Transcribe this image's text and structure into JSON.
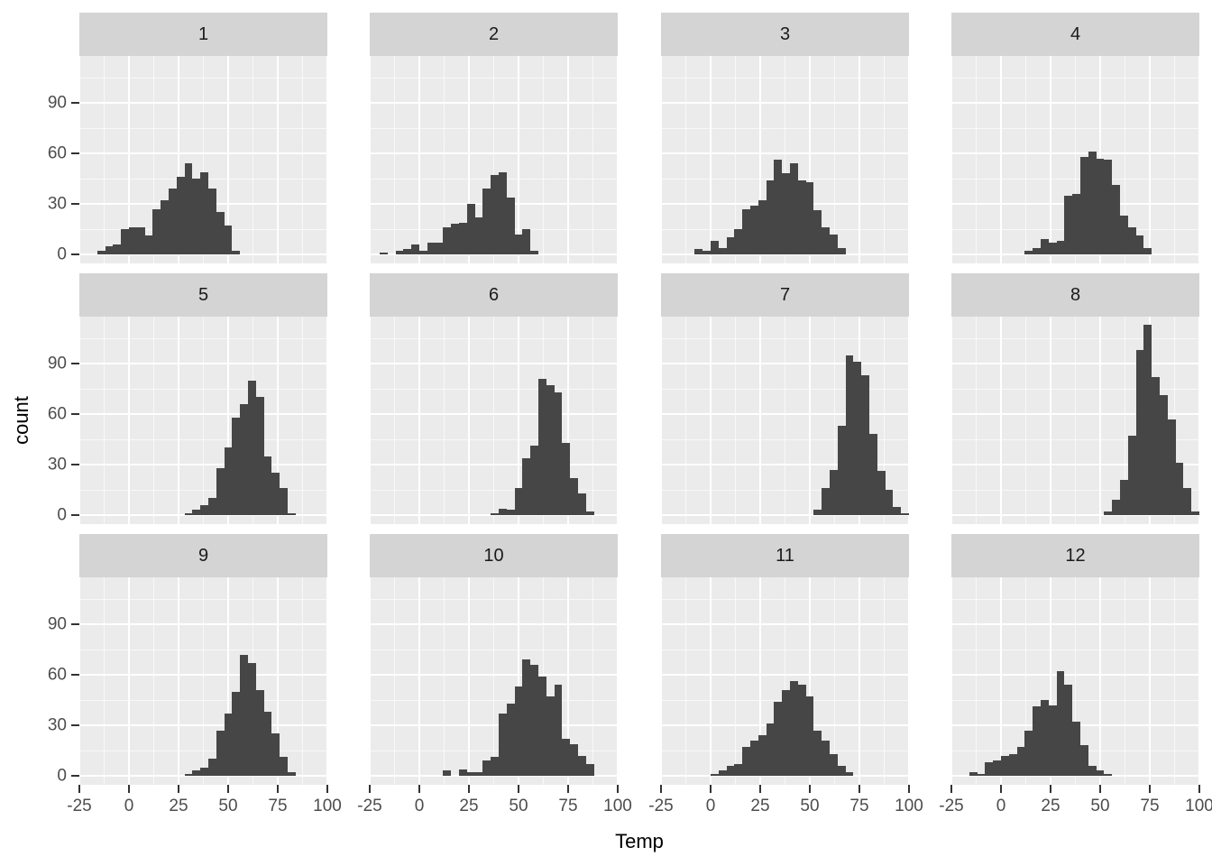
{
  "figure": {
    "x_title": "Temp",
    "y_title": "count",
    "x_tick_labels": [
      "-25",
      "0",
      "25",
      "50",
      "75",
      "100"
    ],
    "y_tick_labels": [
      "0",
      "30",
      "60",
      "90"
    ]
  },
  "chart_data": {
    "type": "bar",
    "subtype": "faceted-histogram",
    "facet_variable": "month (1-12)",
    "xlabel": "Temp",
    "ylabel": "count",
    "x_ticks": [
      -25,
      0,
      25,
      50,
      75,
      100
    ],
    "y_ticks": [
      0,
      30,
      60,
      90
    ],
    "xlim": [
      -25,
      100
    ],
    "ylim": [
      0,
      117
    ],
    "binwidth": 4,
    "grid": "on",
    "legend": "none",
    "colors": {
      "bar": "#464646",
      "panel_background": "#ebebeb",
      "strip_background": "#d4d4d4",
      "gridline": "#ffffff",
      "tick_mark": "#333333",
      "tick_label": "#4d4d4d",
      "title_text": "#000000"
    },
    "facets": [
      {
        "label": "1",
        "bin_start": -16,
        "counts": [
          2,
          5,
          6,
          15,
          16,
          16,
          11,
          27,
          32,
          39,
          46,
          54,
          45,
          49,
          39,
          25,
          17,
          2
        ]
      },
      {
        "label": "2",
        "bin_start": -20,
        "counts": [
          1,
          0,
          2,
          3,
          6,
          2,
          7,
          7,
          16,
          18,
          19,
          30,
          22,
          39,
          47,
          49,
          34,
          12,
          15,
          2
        ]
      },
      {
        "label": "3",
        "bin_start": -8,
        "counts": [
          3,
          2,
          8,
          4,
          10,
          15,
          27,
          29,
          32,
          44,
          56,
          48,
          54,
          44,
          43,
          26,
          16,
          12,
          4
        ]
      },
      {
        "label": "4",
        "bin_start": 12,
        "counts": [
          2,
          4,
          9,
          7,
          8,
          35,
          36,
          58,
          61,
          57,
          56,
          41,
          23,
          16,
          11,
          4
        ]
      },
      {
        "label": "5",
        "bin_start": 28,
        "counts": [
          1,
          3,
          6,
          10,
          28,
          40,
          58,
          66,
          80,
          70,
          35,
          25,
          16,
          1
        ]
      },
      {
        "label": "6",
        "bin_start": 36,
        "counts": [
          1,
          4,
          3,
          16,
          34,
          41,
          81,
          77,
          73,
          43,
          22,
          13,
          2
        ]
      },
      {
        "label": "7",
        "bin_start": 52,
        "counts": [
          3,
          16,
          27,
          53,
          95,
          91,
          83,
          48,
          26,
          15,
          5,
          1
        ]
      },
      {
        "label": "8",
        "bin_start": 52,
        "counts": [
          2,
          9,
          21,
          47,
          98,
          113,
          82,
          71,
          57,
          31,
          16,
          2
        ]
      },
      {
        "label": "9",
        "bin_start": 28,
        "counts": [
          1,
          3,
          5,
          10,
          27,
          37,
          50,
          72,
          67,
          51,
          38,
          25,
          11,
          2
        ]
      },
      {
        "label": "10",
        "bin_start": 12,
        "counts": [
          3,
          0,
          4,
          2,
          2,
          9,
          11,
          37,
          43,
          53,
          69,
          66,
          59,
          47,
          54,
          22,
          19,
          12,
          7
        ]
      },
      {
        "label": "11",
        "bin_start": 0,
        "counts": [
          1,
          3,
          6,
          7,
          17,
          21,
          24,
          31,
          44,
          51,
          56,
          54,
          47,
          27,
          21,
          13,
          6,
          2
        ]
      },
      {
        "label": "12",
        "bin_start": -16,
        "counts": [
          2,
          1,
          8,
          9,
          12,
          13,
          17,
          27,
          41,
          45,
          42,
          62,
          54,
          32,
          18,
          6,
          3,
          1
        ]
      }
    ]
  }
}
